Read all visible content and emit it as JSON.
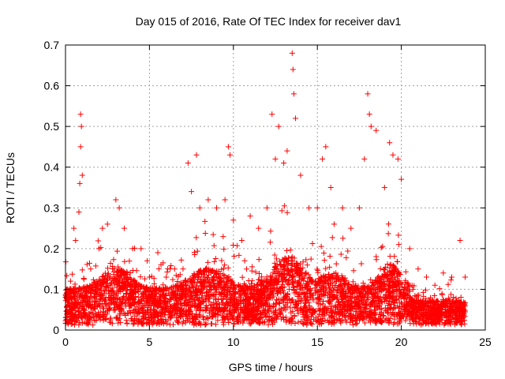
{
  "chart_data": {
    "type": "scatter",
    "title": "Day 015 of 2016, Rate Of TEC Index for receiver dav1",
    "xlabel": "GPS time / hours",
    "ylabel": "ROTI / TECUs",
    "xlim": [
      0,
      25
    ],
    "ylim": [
      0,
      0.7
    ],
    "xticks": [
      0,
      5,
      10,
      15,
      20,
      25
    ],
    "xtick_labels": [
      "0",
      "5",
      "10",
      "15",
      "20",
      "25"
    ],
    "yticks": [
      0,
      0.1,
      0.2,
      0.3,
      0.4,
      0.5,
      0.6,
      0.7
    ],
    "ytick_labels": [
      "0",
      "0.1",
      "0.2",
      "0.3",
      "0.4",
      "0.5",
      "0.6",
      "0.7"
    ],
    "grid": true,
    "marker": "+",
    "marker_color": "#ff0000",
    "series": [
      {
        "name": "ROTI",
        "note": "dense cloud of points, approximately 0.01–0.2 TECU across 0–23.8 h; listed points are representative, including the visible outliers",
        "points": [
          [
            0.1,
            0.04
          ],
          [
            0.3,
            0.12
          ],
          [
            0.5,
            0.25
          ],
          [
            0.6,
            0.22
          ],
          [
            0.8,
            0.29
          ],
          [
            0.85,
            0.36
          ],
          [
            0.9,
            0.45
          ],
          [
            0.9,
            0.53
          ],
          [
            0.95,
            0.5
          ],
          [
            1.0,
            0.38
          ],
          [
            1.5,
            0.15
          ],
          [
            2.0,
            0.2
          ],
          [
            2.2,
            0.25
          ],
          [
            2.5,
            0.26
          ],
          [
            3.0,
            0.32
          ],
          [
            3.2,
            0.3
          ],
          [
            3.5,
            0.25
          ],
          [
            4.0,
            0.2
          ],
          [
            4.5,
            0.2
          ],
          [
            5.0,
            0.13
          ],
          [
            5.5,
            0.19
          ],
          [
            6.0,
            0.13
          ],
          [
            6.5,
            0.15
          ],
          [
            7.0,
            0.15
          ],
          [
            7.3,
            0.41
          ],
          [
            7.5,
            0.34
          ],
          [
            7.8,
            0.43
          ],
          [
            8.0,
            0.3
          ],
          [
            8.5,
            0.32
          ],
          [
            9.0,
            0.3
          ],
          [
            9.5,
            0.32
          ],
          [
            9.7,
            0.45
          ],
          [
            9.8,
            0.43
          ],
          [
            10.0,
            0.27
          ],
          [
            10.5,
            0.22
          ],
          [
            11.0,
            0.28
          ],
          [
            11.5,
            0.25
          ],
          [
            12.0,
            0.3
          ],
          [
            12.3,
            0.53
          ],
          [
            12.5,
            0.42
          ],
          [
            12.7,
            0.5
          ],
          [
            13.0,
            0.41
          ],
          [
            13.2,
            0.44
          ],
          [
            13.5,
            0.68
          ],
          [
            13.55,
            0.64
          ],
          [
            13.6,
            0.58
          ],
          [
            13.7,
            0.52
          ],
          [
            14.0,
            0.38
          ],
          [
            14.5,
            0.3
          ],
          [
            15.0,
            0.3
          ],
          [
            15.3,
            0.42
          ],
          [
            15.5,
            0.45
          ],
          [
            15.8,
            0.35
          ],
          [
            16.0,
            0.26
          ],
          [
            16.5,
            0.3
          ],
          [
            17.0,
            0.25
          ],
          [
            17.5,
            0.3
          ],
          [
            17.8,
            0.42
          ],
          [
            18.0,
            0.58
          ],
          [
            18.1,
            0.53
          ],
          [
            18.2,
            0.5
          ],
          [
            18.5,
            0.49
          ],
          [
            19.0,
            0.35
          ],
          [
            19.3,
            0.46
          ],
          [
            19.5,
            0.43
          ],
          [
            19.8,
            0.42
          ],
          [
            20.0,
            0.37
          ],
          [
            20.5,
            0.2
          ],
          [
            21.0,
            0.15
          ],
          [
            21.5,
            0.13
          ],
          [
            22.0,
            0.11
          ],
          [
            22.5,
            0.14
          ],
          [
            23.0,
            0.13
          ],
          [
            23.5,
            0.22
          ],
          [
            23.8,
            0.13
          ]
        ]
      }
    ]
  }
}
